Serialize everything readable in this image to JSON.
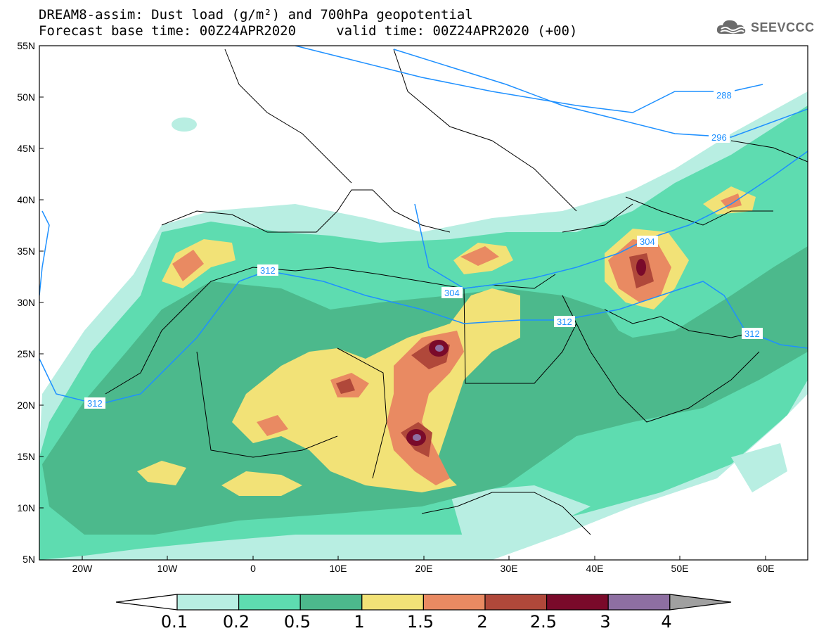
{
  "title": {
    "line1": "DREAM8-assim: Dust load (g/m²) and 700hPa geopotential",
    "line2": "Forecast base time: 00Z24APR2020     valid time: 00Z24APR2020 (+00)"
  },
  "logo": {
    "icon": "cloud-icon",
    "text": "SEEVCCC"
  },
  "axes": {
    "lat_labels": [
      "55N",
      "50N",
      "45N",
      "40N",
      "35N",
      "30N",
      "25N",
      "20N",
      "15N",
      "10N",
      "5N"
    ],
    "lon_labels": [
      "20W",
      "10W",
      "0",
      "10E",
      "20E",
      "30E",
      "40E",
      "50E",
      "60E"
    ],
    "lat_range": [
      5,
      55
    ],
    "lon_range": [
      -25,
      65
    ]
  },
  "contours": {
    "color": "#1e90ff",
    "labels": [
      "288",
      "296",
      "304",
      "304",
      "312",
      "312",
      "312",
      "312"
    ]
  },
  "colorbar": {
    "ticks": [
      "0.1",
      "0.2",
      "0.5",
      "1",
      "1.5",
      "2",
      "2.5",
      "3",
      "4"
    ],
    "colors": [
      "#ffffff",
      "#b8eee2",
      "#5edcb0",
      "#4cb98c",
      "#f2e277",
      "#e98a62",
      "#b0483a",
      "#7a0a2a",
      "#8e6fa2",
      "#a0a0a0"
    ]
  }
}
